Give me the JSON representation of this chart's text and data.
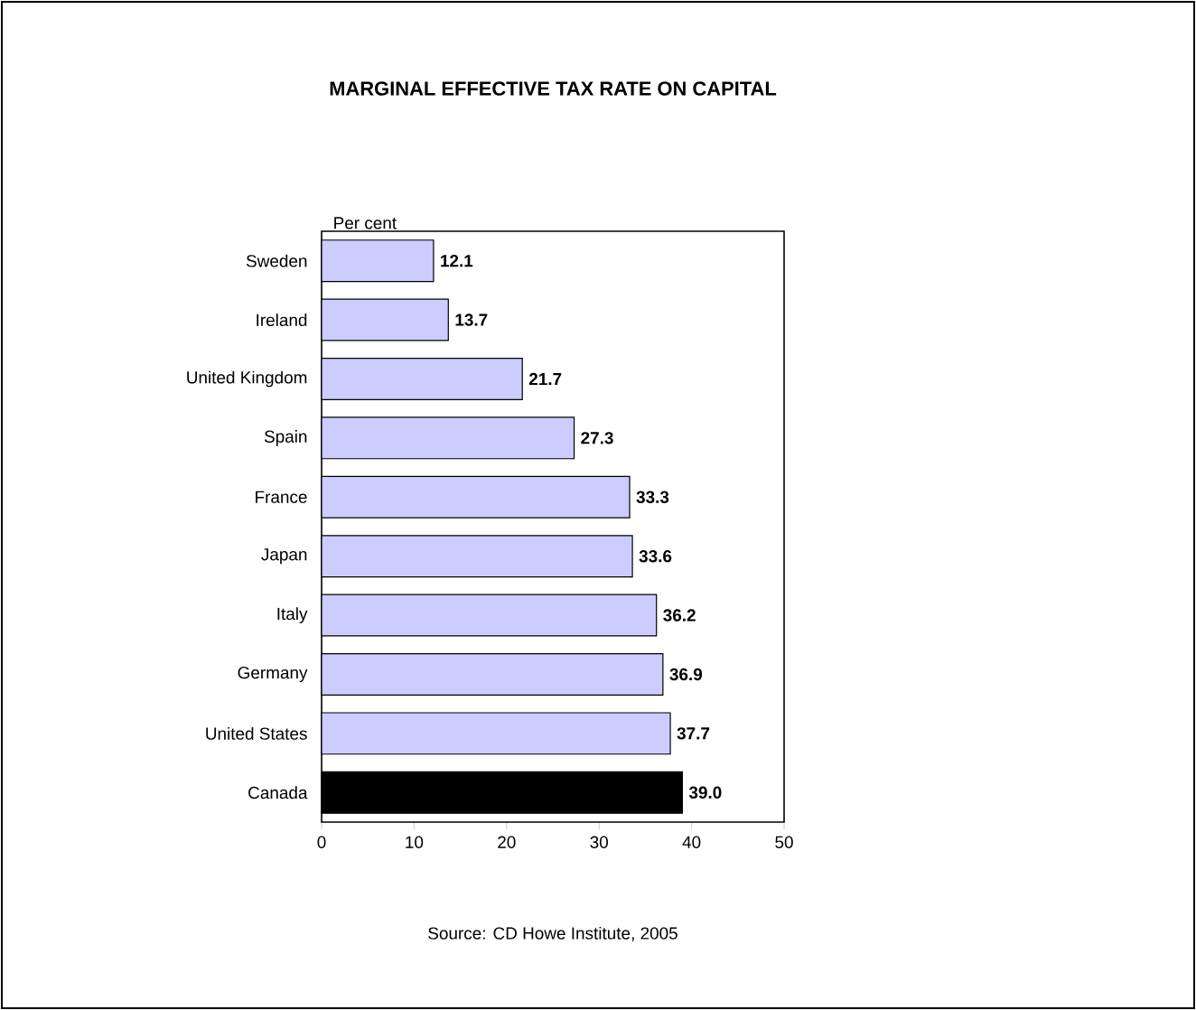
{
  "chart_data": {
    "type": "bar",
    "orientation": "horizontal",
    "title": "MARGINAL EFFECTIVE TAX RATE ON CAPITAL",
    "xlabel": "Per cent",
    "categories": [
      "Sweden",
      "Ireland",
      "United Kingdom",
      "Spain",
      "France",
      "Japan",
      "Italy",
      "Germany",
      "United States",
      "Canada"
    ],
    "values": [
      12.1,
      13.7,
      21.7,
      27.3,
      33.3,
      33.6,
      36.2,
      36.9,
      37.7,
      39.0
    ],
    "colors": [
      "#ccccff",
      "#ccccff",
      "#ccccff",
      "#ccccff",
      "#ccccff",
      "#ccccff",
      "#ccccff",
      "#ccccff",
      "#ccccff",
      "#000000"
    ],
    "value_labels": [
      "12.1",
      "13.7",
      "21.7",
      "27.3",
      "33.3",
      "33.6",
      "36.2",
      "36.9",
      "37.7",
      "39.0"
    ],
    "xlim": [
      0,
      50
    ],
    "xticks": [
      0,
      10,
      20,
      30,
      40,
      50
    ],
    "grid": false,
    "annotations": [
      "Source: CD Howe Institute, 2005"
    ]
  }
}
